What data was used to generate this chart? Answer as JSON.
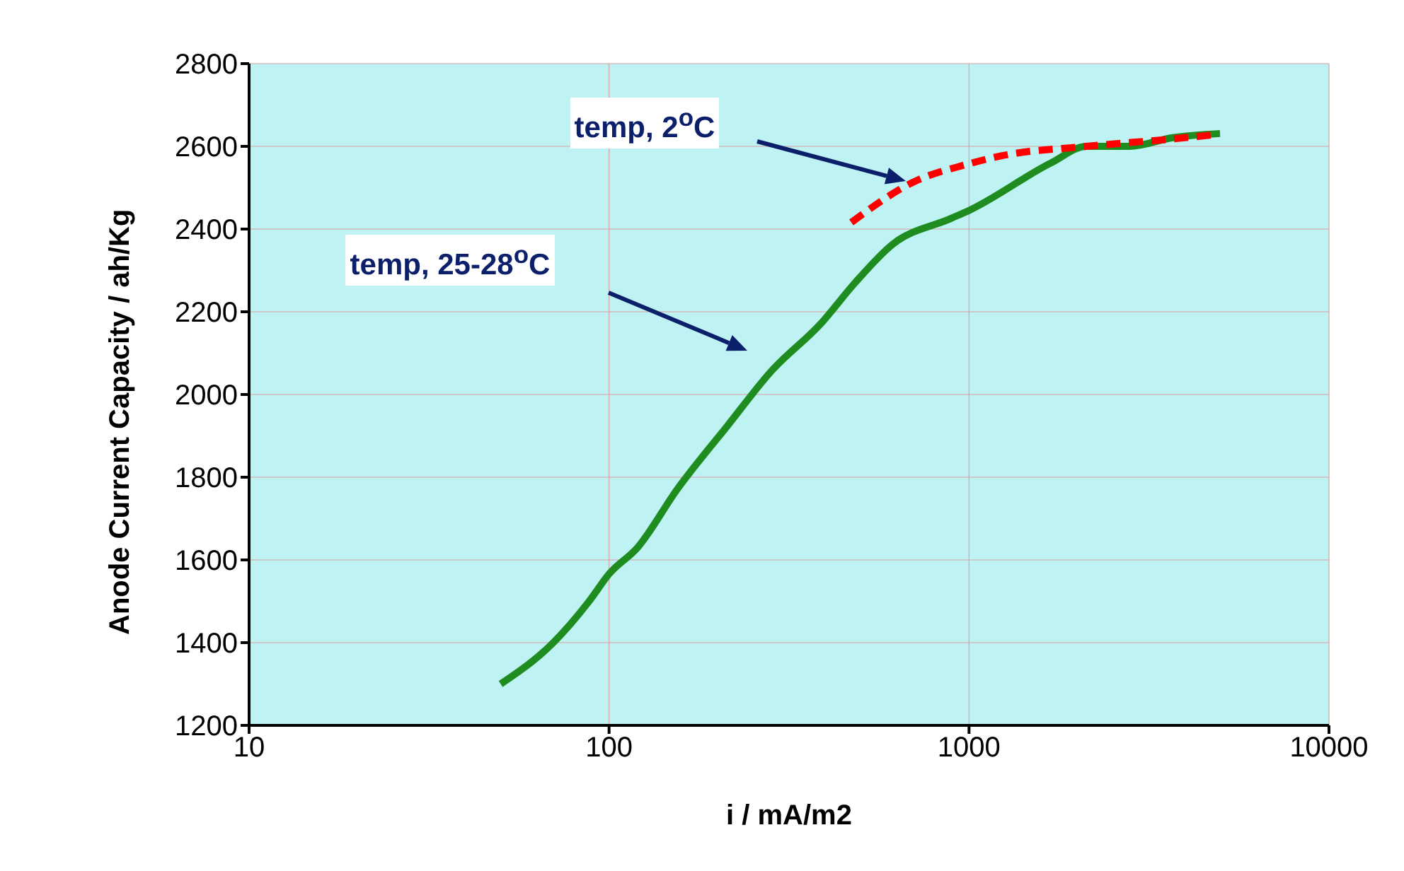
{
  "chart_data": {
    "type": "line",
    "xlabel": "i / mA/m2",
    "ylabel": "Anode Current Capacity / ah/Kg",
    "log": "x",
    "xlim": [
      10,
      10000
    ],
    "xticks": [
      10,
      100,
      1000,
      10000
    ],
    "ylim": [
      1200,
      2800
    ],
    "yticks": [
      1200,
      1400,
      1600,
      1800,
      2000,
      2200,
      2400,
      2600,
      2800
    ],
    "grid": true,
    "series": [
      {
        "color": "#1e8c1e",
        "line_style": "solid",
        "x": [
          50,
          70,
          88,
          100,
          120,
          155,
          214,
          282,
          389,
          480,
          615,
          887,
          1000,
          1690,
          2120,
          2790,
          3680,
          4980
        ],
        "values": [
          1300,
          1400,
          1500,
          1566,
          1630,
          1772,
          1926,
          2056,
          2173,
          2268,
          2364,
          2425,
          2445,
          2560,
          2600,
          2600,
          2621,
          2631
        ]
      },
      {
        "color": "#ff0000",
        "line_style": "dashed",
        "x": [
          471,
          706,
          982,
          1230,
          2120,
          3680,
          4800
        ],
        "values": [
          2416,
          2515,
          2556,
          2577,
          2600,
          2618,
          2628
        ]
      }
    ],
    "annotations": [
      "temp, 2$^{o}$C",
      "temp, 25-28$^{o}$C"
    ]
  }
}
